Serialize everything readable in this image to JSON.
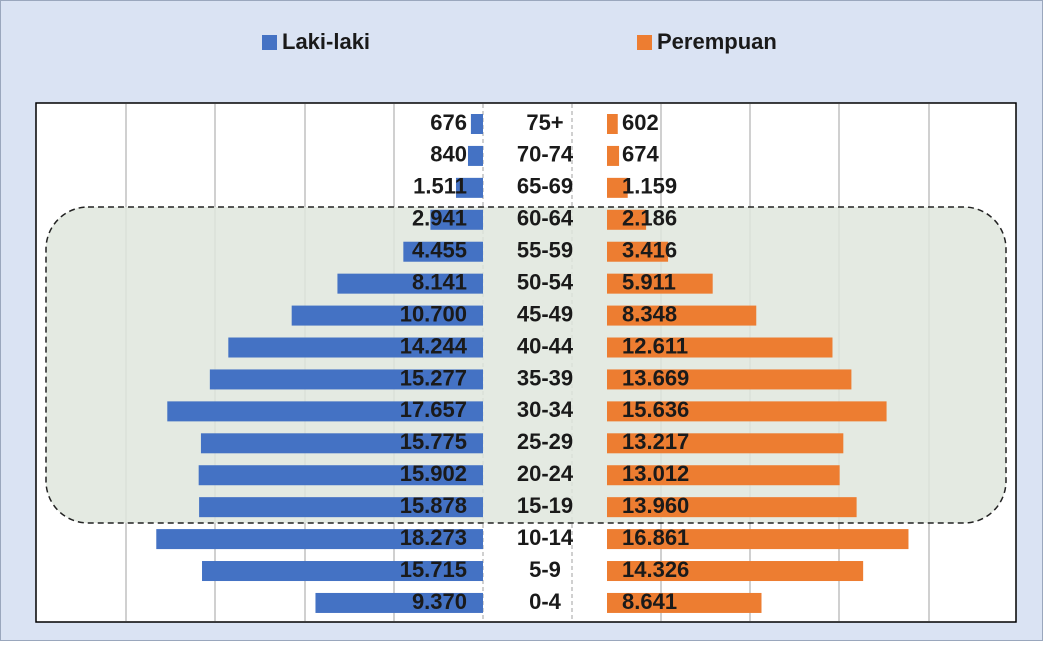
{
  "chart_data": {
    "type": "pyramid",
    "categories": [
      "75+",
      "70-74",
      "65-69",
      "60-64",
      "55-59",
      "50-54",
      "45-49",
      "40-44",
      "35-39",
      "30-34",
      "25-29",
      "20-24",
      "15-19",
      "10-14",
      "5-9",
      "0-4"
    ],
    "xlim": [
      0,
      25000
    ],
    "series": [
      {
        "name": "Laki-laki",
        "color": "#4472c4",
        "values": [
          676,
          840,
          1511,
          2941,
          4455,
          8141,
          10700,
          14244,
          15277,
          17657,
          15775,
          15902,
          15878,
          18273,
          15715,
          9370
        ],
        "value_labels": [
          "676",
          "840",
          "1.511",
          "2.941",
          "4.455",
          "8.141",
          "10.700",
          "14.244",
          "15.277",
          "17.657",
          "15.775",
          "15.902",
          "15.878",
          "18.273",
          "15.715",
          "9.370"
        ]
      },
      {
        "name": "Perempuan",
        "color": "#ed7d31",
        "values": [
          602,
          674,
          1159,
          2186,
          3416,
          5911,
          8348,
          12611,
          13669,
          15636,
          13217,
          13012,
          13960,
          16861,
          14326,
          8641
        ],
        "value_labels": [
          "602",
          "674",
          "1.159",
          "2.186",
          "3.416",
          "5.911",
          "8.348",
          "12.611",
          "13.669",
          "15.636",
          "13.217",
          "13.012",
          "13.960",
          "16.861",
          "14.326",
          "8.641"
        ]
      }
    ]
  }
}
